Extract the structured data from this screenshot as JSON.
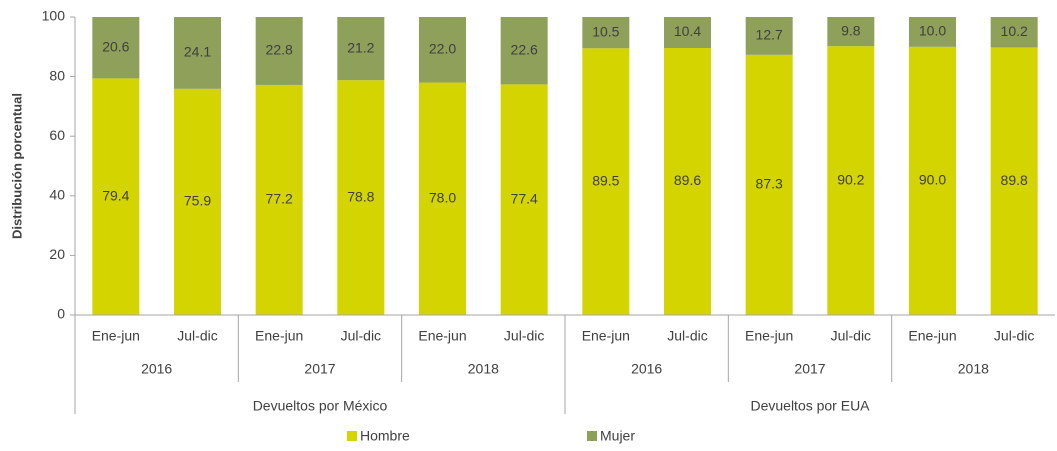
{
  "chart_data": {
    "type": "bar",
    "stacked": true,
    "y_label": "Distribución porcentual",
    "categories": [
      "Ene-jun",
      "Jul-dic",
      "Ene-jun",
      "Jul-dic",
      "Ene-jun",
      "Jul-dic",
      "Ene-jun",
      "Jul-dic",
      "Ene-jun",
      "Jul-dic",
      "Ene-jun",
      "Jul-dic"
    ],
    "year_labels": [
      "2016",
      "2017",
      "2018",
      "2016",
      "2017",
      "2018"
    ],
    "group_labels": [
      "Devueltos por México",
      "Devueltos por EUA"
    ],
    "series": [
      {
        "name": "Hombre",
        "color": "#d4d400",
        "values": [
          79.4,
          75.9,
          77.2,
          78.8,
          78.0,
          77.4,
          89.5,
          89.6,
          87.3,
          90.2,
          90.0,
          89.8
        ],
        "value_labels": [
          "79.4",
          "75.9",
          "77.2",
          "78.8",
          "78.0",
          "77.4",
          "89.5",
          "89.6",
          "87.3",
          "90.2",
          "90.0",
          "89.8"
        ]
      },
      {
        "name": "Mujer",
        "color": "#8ea05a",
        "values": [
          20.6,
          24.1,
          22.8,
          21.2,
          22.0,
          22.6,
          10.5,
          10.4,
          12.7,
          9.8,
          10.0,
          10.2
        ],
        "value_labels": [
          "20.6",
          "24.1",
          "22.8",
          "21.2",
          "22.0",
          "22.6",
          "10.5",
          "10.4",
          "12.7",
          "9.8",
          "10.0",
          "10.2"
        ]
      }
    ],
    "ylim": [
      0,
      100
    ],
    "yticks": [
      0,
      20,
      40,
      60,
      80,
      100
    ],
    "legend": "bottom"
  }
}
